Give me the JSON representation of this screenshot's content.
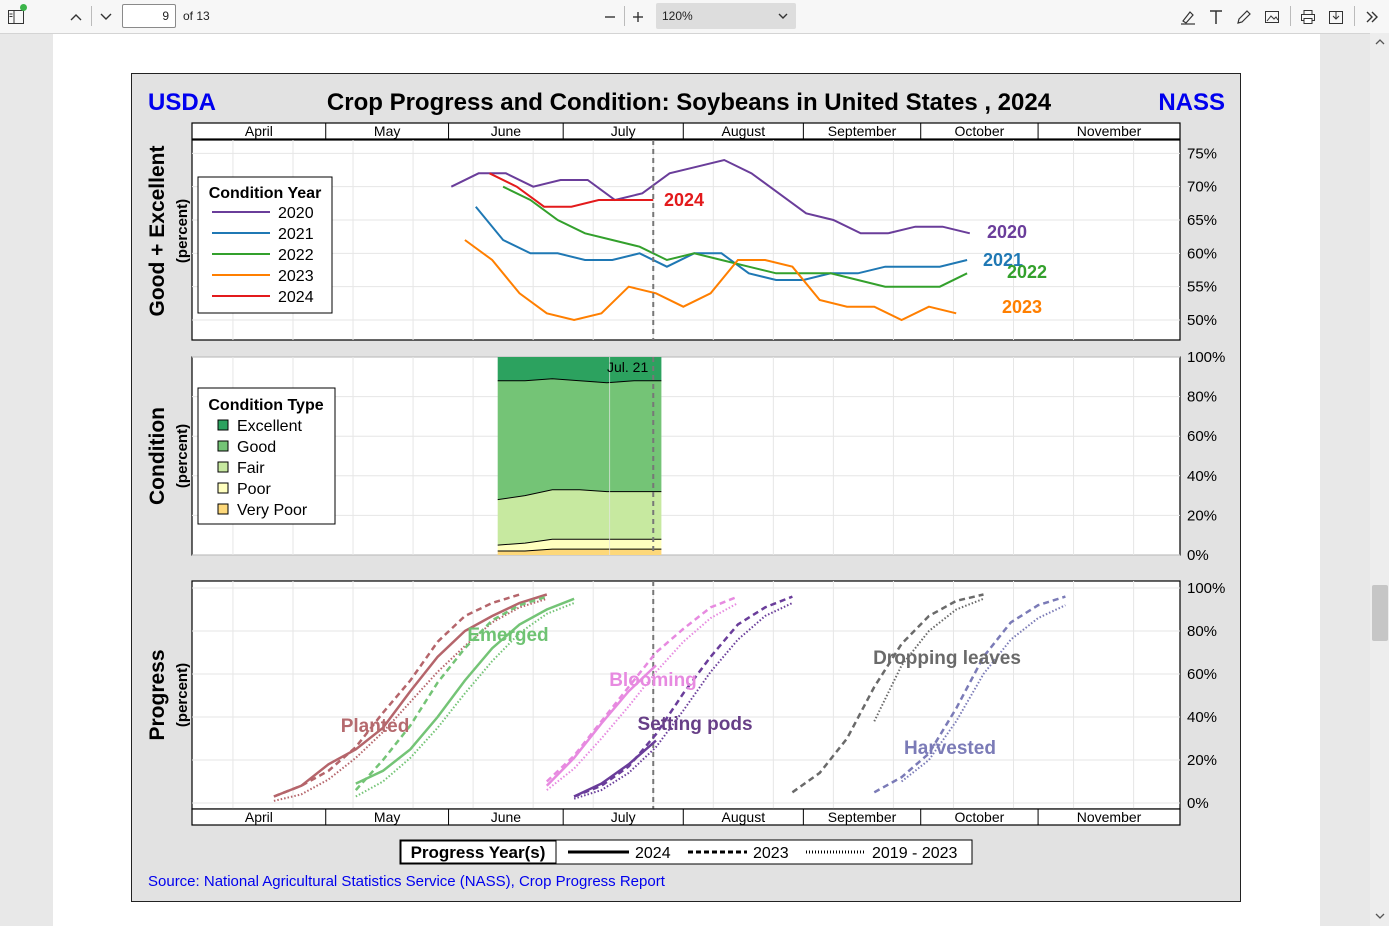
{
  "toolbar": {
    "page_current": "9",
    "page_of": "of 13",
    "zoom": "120%"
  },
  "icons": [
    "sidebar-icon",
    "page-up-icon",
    "page-down-icon",
    "zoom-out-icon",
    "zoom-in-icon",
    "chevron-down-icon",
    "highlight-icon",
    "text-icon",
    "draw-icon",
    "image-icon",
    "print-icon",
    "save-icon",
    "more-icon"
  ],
  "figure": {
    "left_brand": "USDA",
    "right_brand": "NASS",
    "title": "Crop Progress and Condition: Soybeans in United States , 2024",
    "source": "Source: National Agricultural Statistics Service (NASS), Crop Progress Report",
    "brand_color": "#0000ee",
    "months": [
      "April",
      "May",
      "June",
      "July",
      "August",
      "September",
      "October",
      "November"
    ]
  },
  "chart_data": [
    {
      "type": "line",
      "panel": "good_excellent",
      "ylabel": "Good + Excellent",
      "ylabel_unit": "(percent)",
      "ylim": [
        47,
        77
      ],
      "yticks": [
        "75%",
        "70%",
        "65%",
        "60%",
        "55%",
        "50%"
      ],
      "ytick_values": [
        75,
        70,
        65,
        60,
        55,
        50
      ],
      "legend_title": "Condition Year",
      "x_unit": "week (0 = Apr 1)",
      "series": [
        {
          "name": "2020",
          "color": "#6a3d9a",
          "x": [
            9.5,
            10.5,
            11.5,
            12.5,
            13.5,
            14.5,
            15.5,
            16.5,
            17.5,
            18.5,
            19.5,
            20.5,
            21.5,
            22.5,
            23.5,
            24.5,
            25.5,
            26.5,
            27.5,
            28.5
          ],
          "values": [
            70,
            72,
            72,
            70,
            71,
            71,
            68,
            69,
            72,
            73,
            74,
            72,
            69,
            66,
            65,
            63,
            63,
            64,
            64,
            63
          ]
        },
        {
          "name": "2021",
          "color": "#1f78b4",
          "x": [
            10.4,
            11.4,
            12.4,
            13.4,
            14.4,
            15.4,
            16.4,
            17.4,
            18.4,
            19.4,
            20.4,
            21.4,
            22.4,
            23.4,
            24.4,
            25.4,
            26.4,
            27.4,
            28.4
          ],
          "values": [
            67,
            62,
            60,
            60,
            59,
            59,
            60,
            58,
            60,
            60,
            57,
            56,
            56,
            57,
            57,
            58,
            58,
            58,
            59
          ]
        },
        {
          "name": "2022",
          "color": "#33a02c",
          "x": [
            11.4,
            12.4,
            13.4,
            14.4,
            15.4,
            16.4,
            17.4,
            18.4,
            19.4,
            20.4,
            21.4,
            22.4,
            23.4,
            24.4,
            25.4,
            26.4,
            27.4,
            28.4
          ],
          "values": [
            70,
            68,
            65,
            63,
            62,
            61,
            59,
            60,
            59,
            58,
            57,
            57,
            57,
            56,
            55,
            55,
            55,
            57
          ]
        },
        {
          "name": "2023",
          "color": "#ff7f00",
          "x": [
            10,
            11,
            12,
            13,
            14,
            15,
            16,
            17,
            18,
            19,
            20,
            21,
            22,
            23,
            24,
            25,
            26,
            27,
            28
          ],
          "values": [
            62,
            59,
            54,
            51,
            50,
            51,
            55,
            54,
            52,
            54,
            59,
            59,
            58,
            53,
            52,
            52,
            50,
            52,
            51
          ]
        },
        {
          "name": "2024",
          "color": "#e31a1c",
          "x": [
            10.9,
            11.9,
            12.9,
            13.9,
            14.9,
            15.9,
            16.9
          ],
          "values": [
            72,
            70,
            67,
            67,
            68,
            68,
            68
          ]
        }
      ],
      "year_labels": [
        "2020",
        "2021",
        "2022",
        "2023",
        "2024"
      ],
      "current_label": "2024"
    },
    {
      "type": "area",
      "panel": "condition",
      "ylabel": "Condition",
      "ylabel_unit": "(percent)",
      "ylim": [
        0,
        100
      ],
      "yticks": [
        "100%",
        "80%",
        "60%",
        "40%",
        "20%",
        "0%"
      ],
      "ytick_values": [
        100,
        80,
        60,
        40,
        20,
        0
      ],
      "legend_title": "Condition Type",
      "week_label": "Jul. 21",
      "x": [
        11.2,
        12.2,
        13.2,
        14.2,
        15.2,
        16.2,
        17.2
      ],
      "categories": [
        "Excellent",
        "Good",
        "Fair",
        "Poor",
        "Very Poor"
      ],
      "colors": [
        "#2ca25f",
        "#74c476",
        "#c7e9a0",
        "#ffffbf",
        "#fdd87a"
      ],
      "cumulative": {
        "very_poor": [
          2,
          2,
          3,
          3,
          3,
          3,
          3
        ],
        "poor": [
          5,
          6,
          8,
          8,
          8,
          8,
          8
        ],
        "fair": [
          28,
          30,
          33,
          33,
          32,
          32,
          32
        ],
        "good": [
          88,
          88,
          89,
          88,
          87,
          88,
          88
        ]
      }
    },
    {
      "type": "line",
      "panel": "progress",
      "ylabel": "Progress",
      "ylabel_unit": "(percent)",
      "ylim": [
        0,
        100
      ],
      "yticks": [
        "100%",
        "80%",
        "60%",
        "40%",
        "20%",
        "0%"
      ],
      "ytick_values": [
        100,
        80,
        60,
        40,
        20,
        0
      ],
      "legend_title": "Progress Year(s)",
      "legend_entries": [
        "2024",
        "2023",
        "2019 - 2023"
      ],
      "stages": [
        {
          "name": "Planted",
          "color": "#b5656b",
          "label_color": "#b56a6e",
          "y2024": {
            "x": [
              3,
              4,
              5,
              6,
              7,
              8,
              9,
              10,
              11,
              12,
              13
            ],
            "values": [
              3,
              8,
              18,
              25,
              35,
              52,
              68,
              80,
              87,
              93,
              97
            ]
          },
          "y2023": {
            "x": [
              3,
              4,
              5,
              6,
              7,
              8,
              9,
              10,
              11,
              12
            ],
            "values": [
              3,
              8,
              15,
              26,
              42,
              57,
              75,
              87,
              93,
              97
            ]
          },
          "avg": {
            "x": [
              3,
              4,
              5,
              6,
              7,
              8,
              9,
              10,
              11,
              12,
              13
            ],
            "values": [
              1,
              4,
              11,
              21,
              33,
              47,
              61,
              73,
              84,
              91,
              95
            ]
          }
        },
        {
          "name": "Emerged",
          "color": "#74c476",
          "label_color": "#6fc373",
          "y2024": {
            "x": [
              6,
              7,
              8,
              9,
              10,
              11,
              12,
              13,
              14
            ],
            "values": [
              9,
              15,
              25,
              40,
              57,
              72,
              83,
              90,
              95
            ]
          },
          "y2023": {
            "x": [
              6,
              7,
              8,
              9,
              10,
              11,
              12,
              13
            ],
            "values": [
              6,
              20,
              36,
              56,
              72,
              85,
              92,
              96
            ]
          },
          "avg": {
            "x": [
              6,
              7,
              8,
              9,
              10,
              11,
              12,
              13,
              14
            ],
            "values": [
              3,
              10,
              21,
              35,
              51,
              66,
              79,
              88,
              93
            ]
          }
        },
        {
          "name": "Blooming",
          "color": "#e78ae0",
          "label_color": "#e78ae0",
          "y2024": {
            "x": [
              13,
              14,
              15,
              16,
              17
            ],
            "values": [
              8,
              21,
              37,
              52,
              64
            ]
          },
          "y2023": {
            "x": [
              13,
              14,
              15,
              16,
              17,
              18,
              19,
              20
            ],
            "values": [
              10,
              22,
              38,
              54,
              70,
              81,
              91,
              96
            ]
          },
          "avg": {
            "x": [
              13,
              14,
              15,
              16,
              17,
              18,
              19,
              20
            ],
            "values": [
              6,
              16,
              30,
              45,
              61,
              75,
              86,
              93
            ]
          }
        },
        {
          "name": "Setting pods",
          "color": "#6a3d9a",
          "label_color": "#673f87",
          "y2024": {
            "x": [
              14,
              15,
              16,
              17
            ],
            "values": [
              3,
              9,
              18,
              29
            ]
          },
          "y2023": {
            "x": [
              14,
              15,
              16,
              17,
              18,
              19,
              20,
              21,
              22
            ],
            "values": [
              3,
              8,
              17,
              32,
              51,
              68,
              83,
              91,
              96
            ]
          },
          "avg": {
            "x": [
              14,
              15,
              16,
              17,
              18,
              19,
              20,
              21,
              22
            ],
            "values": [
              2,
              6,
              14,
              26,
              43,
              61,
              76,
              87,
              93
            ]
          }
        },
        {
          "name": "Dropping leaves",
          "color": "#6a6a6a",
          "label_color": "#6a6a6a",
          "y2024": null,
          "y2023": {
            "x": [
              22,
              23,
              24,
              25,
              26,
              27,
              28,
              29
            ],
            "values": [
              5,
              14,
              30,
              54,
              74,
              87,
              94,
              97
            ]
          },
          "avg": {
            "x": [
              25,
              26,
              27,
              28,
              29
            ],
            "values": [
              38,
              64,
              80,
              90,
              95
            ]
          }
        },
        {
          "name": "Harvested",
          "color": "#7b7bb7",
          "label_color": "#7b7bb7",
          "y2024": null,
          "y2023": {
            "x": [
              25,
              26,
              27,
              28,
              29,
              30,
              31,
              32
            ],
            "values": [
              5,
              12,
              23,
              44,
              68,
              84,
              92,
              96
            ]
          },
          "avg": {
            "x": [
              26,
              27,
              28,
              29,
              30,
              31,
              32
            ],
            "values": [
              10,
              20,
              38,
              60,
              76,
              86,
              92
            ]
          }
        }
      ]
    }
  ]
}
